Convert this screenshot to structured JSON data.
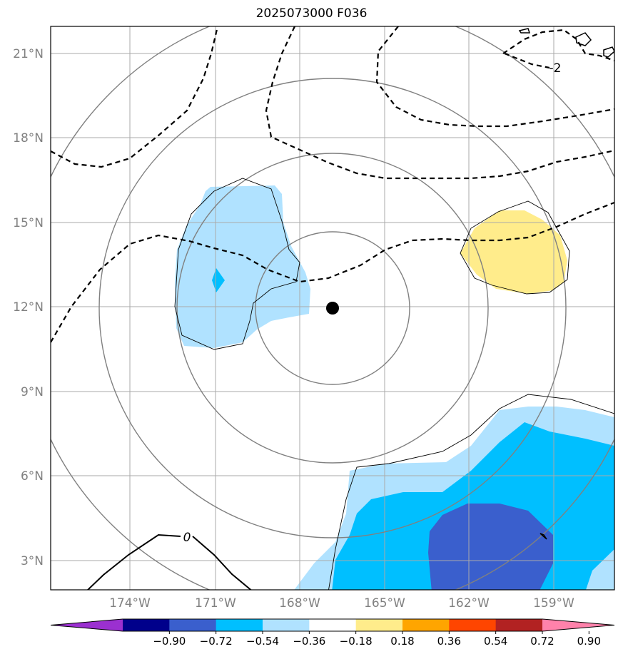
{
  "title": "2025073000 F036",
  "map": {
    "lat_ticks": [
      "21°N",
      "18°N",
      "15°N",
      "12°N",
      "9°N",
      "6°N",
      "3°N"
    ],
    "lon_ticks": [
      "174°W",
      "171°W",
      "168°W",
      "165°W",
      "162°W",
      "159°W"
    ],
    "center_marker": "storm center dot",
    "contour_labels": [
      "-2",
      "0"
    ]
  },
  "colorbar": {
    "ticks": [
      "−0.90",
      "−0.72",
      "−0.54",
      "−0.36",
      "−0.18",
      "0.18",
      "0.36",
      "0.54",
      "0.72",
      "0.90"
    ],
    "colors": [
      "#9b30d0",
      "#00008b",
      "#3a5fcd",
      "#00bfff",
      "#b0e2ff",
      "#ffffff",
      "#ffec8b",
      "#ffa500",
      "#ff4500",
      "#b22222",
      "#ff82ab"
    ]
  }
}
